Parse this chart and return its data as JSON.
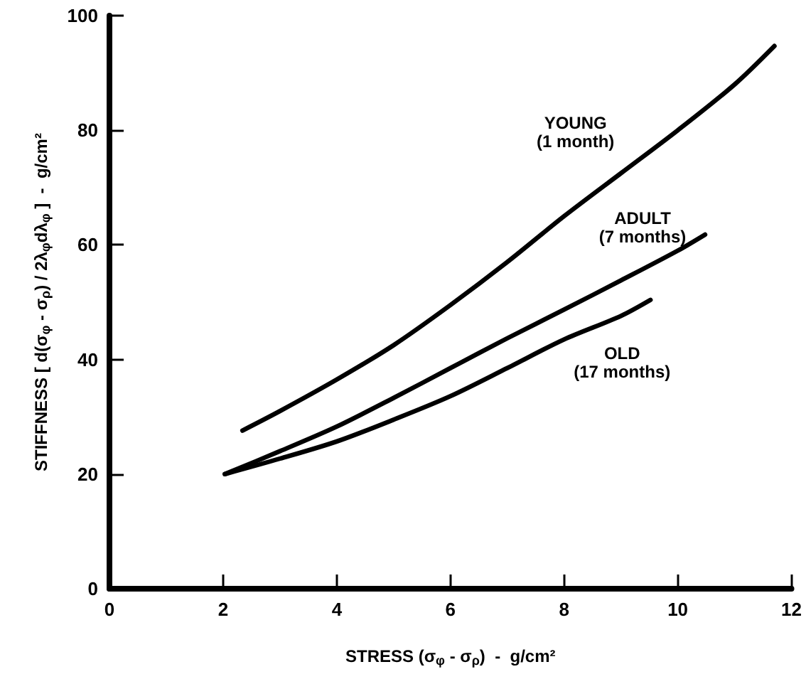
{
  "chart_data": {
    "type": "line",
    "xlabel": "STRESS (σ$_{φ}$ - σ$_{ρ}$)  -  g/cm²",
    "ylabel": "STIFFNESS [ d(σ$_{φ}$ - σ$_{ρ}$) / 2λ$_{φ}$dλ$_{φ}$ ]  -  g/cm²",
    "xlim": [
      0,
      12
    ],
    "xticks": [
      0,
      2,
      4,
      6,
      8,
      10,
      12
    ],
    "ylim": [
      0,
      100
    ],
    "yticks": [
      0,
      20,
      40,
      60,
      80,
      100
    ],
    "grid": false,
    "legend": false,
    "marker": "none",
    "line_style": "solid",
    "series": [
      {
        "name": "YOUNG\n(1 month)",
        "color": "#000000",
        "x": [
          2.34,
          3,
          4,
          5,
          6,
          7,
          8,
          9,
          10,
          11,
          11.7
        ],
        "values": [
          27.6,
          31,
          36.5,
          42.5,
          49.5,
          57,
          65,
          72.5,
          80,
          88,
          94.7
        ]
      },
      {
        "name": "ADULT\n(7 months)",
        "color": "#000000",
        "x": [
          2.03,
          3,
          4,
          5,
          6,
          7,
          8,
          9,
          10,
          10.48
        ],
        "values": [
          20,
          24,
          28.3,
          33.3,
          38.5,
          43.7,
          48.7,
          53.8,
          59,
          61.8
        ]
      },
      {
        "name": "OLD\n(17 months)",
        "color": "#000000",
        "x": [
          2.03,
          3,
          4,
          5,
          6,
          7,
          8,
          9,
          9.52
        ],
        "values": [
          20,
          22.7,
          25.7,
          29.5,
          33.6,
          38.5,
          43.5,
          47.6,
          50.4
        ]
      }
    ]
  }
}
